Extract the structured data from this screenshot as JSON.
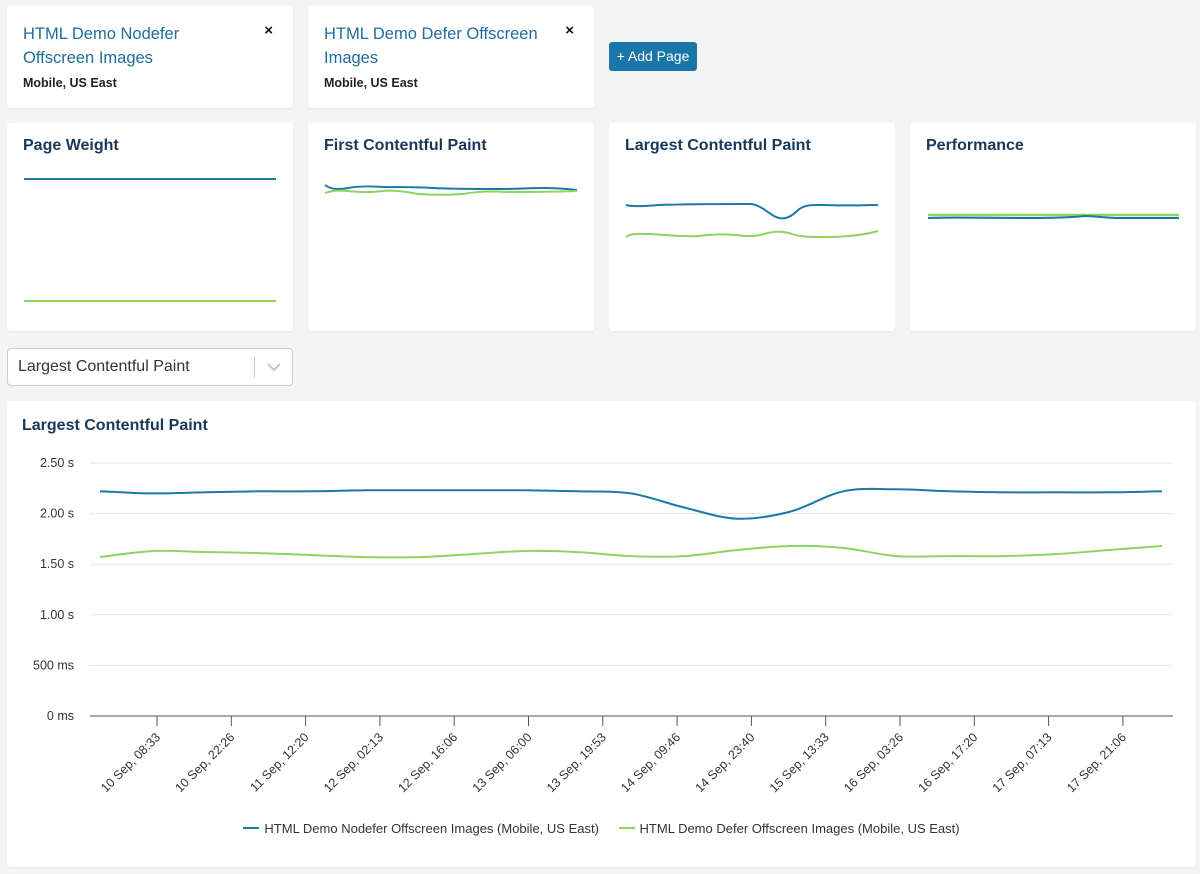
{
  "pages": [
    {
      "title": "HTML Demo Nodefer Offscreen Images",
      "subtitle": "Mobile, US East",
      "close": "×"
    },
    {
      "title": "HTML Demo Defer Offscreen Images",
      "subtitle": "Mobile, US East",
      "close": "×"
    }
  ],
  "add_page_label": "+ Add Page",
  "metric_cards": [
    {
      "title": "Page Weight"
    },
    {
      "title": "First Contentful Paint"
    },
    {
      "title": "Largest Contentful Paint"
    },
    {
      "title": "Performance"
    }
  ],
  "metric_select": {
    "value": "Largest Contentful Paint"
  },
  "colors": {
    "nodefer": "#1a7aa5",
    "defer": "#8fd45e",
    "grid": "#e5e5e5"
  },
  "chart_data": {
    "type": "line",
    "title": "Largest Contentful Paint",
    "y_ticks": [
      {
        "value": 0,
        "label": "0 ms"
      },
      {
        "value": 0.5,
        "label": "500 ms"
      },
      {
        "value": 1.0,
        "label": "1.00 s"
      },
      {
        "value": 1.5,
        "label": "1.50 s"
      },
      {
        "value": 2.0,
        "label": "2.00 s"
      },
      {
        "value": 2.5,
        "label": "2.50 s"
      }
    ],
    "ylim": [
      0,
      2.5
    ],
    "x_ticks": [
      "10 Sep, 08:33",
      "10 Sep, 22:26",
      "11 Sep, 12:20",
      "12 Sep, 02:13",
      "12 Sep, 16:06",
      "13 Sep, 06:00",
      "13 Sep, 19:53",
      "14 Sep, 09:46",
      "14 Sep, 23:40",
      "15 Sep, 13:33",
      "16 Sep, 03:26",
      "16 Sep, 17:20",
      "17 Sep, 07:13",
      "17 Sep, 21:06"
    ],
    "legend_position": "bottom",
    "series": [
      {
        "name": "HTML Demo Nodefer Offscreen Images (Mobile, US East)",
        "color": "#1a7aa5",
        "values": [
          2.22,
          2.2,
          2.21,
          2.22,
          2.22,
          2.23,
          2.23,
          2.23,
          2.23,
          2.22,
          2.2,
          2.06,
          1.95,
          2.02,
          2.22,
          2.24,
          2.22,
          2.21,
          2.21,
          2.21,
          2.22
        ]
      },
      {
        "name": "HTML Demo Defer Offscreen Images (Mobile, US East)",
        "color": "#8fd45e",
        "values": [
          1.57,
          1.63,
          1.62,
          1.61,
          1.59,
          1.57,
          1.57,
          1.6,
          1.63,
          1.62,
          1.58,
          1.58,
          1.64,
          1.68,
          1.66,
          1.58,
          1.58,
          1.58,
          1.6,
          1.64,
          1.68
        ]
      }
    ]
  },
  "sparklines": {
    "page_weight": {
      "nodefer": [
        0.9,
        0.9,
        0.9,
        0.9,
        0.9,
        0.9,
        0.9,
        0.9,
        0.9,
        0.9,
        0.9,
        0.9,
        0.9,
        0.9,
        0.9,
        0.9,
        0.9,
        0.9,
        0.9,
        0.9,
        0.9
      ],
      "defer": [
        0.1,
        0.1,
        0.1,
        0.1,
        0.1,
        0.1,
        0.1,
        0.1,
        0.1,
        0.1,
        0.1,
        0.1,
        0.1,
        0.1,
        0.1,
        0.1,
        0.1,
        0.1,
        0.1,
        0.1,
        0.1
      ]
    },
    "fcp": {
      "nodefer": [
        0.78,
        0.72,
        0.74,
        0.74,
        0.74,
        0.74,
        0.74,
        0.74,
        0.74,
        0.75,
        0.75,
        0.75,
        0.75,
        0.75,
        0.75,
        0.76,
        0.76,
        0.75,
        0.74,
        0.75,
        0.75
      ],
      "defer": [
        0.74,
        0.78,
        0.77,
        0.76,
        0.76,
        0.78,
        0.79,
        0.79,
        0.79,
        0.8,
        0.8,
        0.8,
        0.78,
        0.77,
        0.76,
        0.76,
        0.76,
        0.76,
        0.76,
        0.76,
        0.76
      ]
    }
  }
}
